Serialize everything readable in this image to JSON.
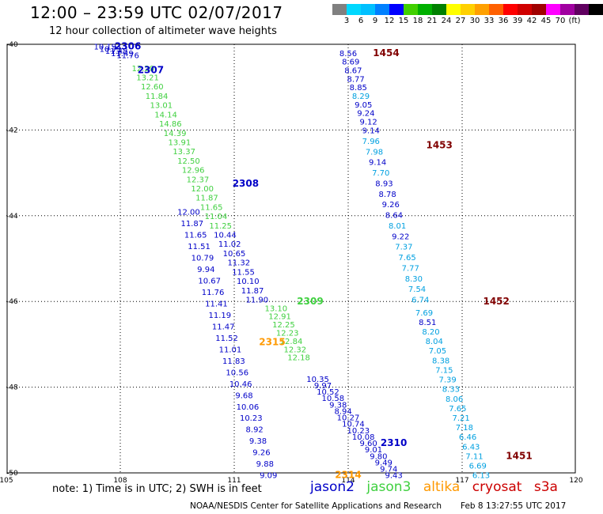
{
  "header": {
    "title": "12:00 – 23:59 UTC 02/07/2017",
    "subtitle": "12 hour collection of altimeter wave heights"
  },
  "scale": {
    "colors": [
      "#808080",
      "#00d8ff",
      "#00c0ff",
      "#0080ff",
      "#0000ff",
      "#40d000",
      "#00b000",
      "#008000",
      "#ffff00",
      "#ffd000",
      "#ffa000",
      "#ff6000",
      "#ff0000",
      "#d00000",
      "#a00000",
      "#ff00ff",
      "#a000a0",
      "#600060",
      "#000000"
    ],
    "labels": [
      "3",
      "6",
      "9",
      "12",
      "15",
      "18",
      "21",
      "24",
      "27",
      "30",
      "33",
      "36",
      "39",
      "42",
      "45",
      "70",
      "(ft)"
    ]
  },
  "axes": {
    "lat_labels": [
      "-40",
      "-42",
      "-44",
      "-46",
      "-48",
      "-50"
    ],
    "lon_labels": [
      "105",
      "108",
      "111",
      "114",
      "117",
      "120"
    ]
  },
  "colors": {
    "jason2": "#0000c8",
    "jason3": "#40d040",
    "altika": "#ff9900",
    "cryosat": "#800000",
    "s3a": "#800000",
    "obs_light": "#00a0e0"
  },
  "tracks": [
    {
      "label": "2306",
      "color": "#0000c8",
      "values": [
        "10.19",
        "10.71",
        "11.48",
        "11.49",
        "11.76"
      ]
    },
    {
      "label": "2307",
      "color": "#0000c8",
      "values": [
        "12.20",
        "13.21",
        "12.60",
        "11.84",
        "13.01",
        "14.14",
        "14.86",
        "14.39",
        "13.91",
        "13.37",
        "12.50",
        "12.96",
        "12.37",
        "12.00",
        "11.87",
        "11.65",
        "11.04",
        "11.25",
        "10.44",
        "11.02",
        "10.65",
        "11.32",
        "11.55",
        "10.10",
        "11.87",
        "11.90"
      ]
    },
    {
      "label": "2308",
      "color": "#0000c8",
      "values": [
        "12.00",
        "11.87",
        "11.65",
        "11.51",
        "10.79",
        "9.94",
        "10.67",
        "11.76",
        "11.41",
        "11.19",
        "11.47",
        "11.52",
        "11.01",
        "11.83",
        "10.56",
        "10.46",
        "9.68",
        "10.06",
        "10.23",
        "8.92",
        "9.38",
        "9.26",
        "9.88",
        "9.09"
      ]
    },
    {
      "label": "2309",
      "color": "#40d040",
      "values": [
        "13.10",
        "12.91",
        "12.25",
        "12.23",
        "12.84",
        "12.32",
        "12.18"
      ]
    },
    {
      "label": "2310",
      "color": "#0000c8",
      "values": [
        "10.35",
        "9.97",
        "10.52",
        "10.58",
        "9.38",
        "8.94",
        "10.27",
        "10.74",
        "10.23",
        "10.08",
        "9.60",
        "9.01",
        "9.80",
        "9.49",
        "9.74",
        "9.43"
      ]
    },
    {
      "label": "1454",
      "color": "#800000",
      "values": [
        "8.56",
        "8.69",
        "8.67",
        "8.77",
        "8.85",
        "8.29",
        "9.05",
        "9.24",
        "9.12",
        "9.14"
      ]
    },
    {
      "label": "1453",
      "color": "#800000",
      "values": [
        "7.96",
        "7.98",
        "9.14",
        "7.70",
        "8.93",
        "8.78",
        "9.26",
        "8.64",
        "8.01",
        "9.22",
        "7.37",
        "7.65",
        "7.77",
        "8.30",
        "7.54",
        "6.74"
      ]
    },
    {
      "label": "1452",
      "color": "#800000",
      "values": [
        "7.69",
        "8.51",
        "8.20",
        "8.04",
        "7.05",
        "8.38",
        "7.15",
        "7.39",
        "8.33",
        "8.06",
        "7.65",
        "7.21",
        "7.18",
        "6.46",
        "6.43",
        "7.11",
        "6.69",
        "6.13"
      ]
    },
    {
      "label": "1451",
      "color": "#800000",
      "values": []
    },
    {
      "label": "2315",
      "color": "#ff9900",
      "values": []
    },
    {
      "label": "2314",
      "color": "#ff9900",
      "values": []
    }
  ],
  "footer": {
    "note": "note:  1) Time is in UTC;  2) SWH is in feet",
    "legend": [
      "jason2",
      "jason3",
      "altika",
      "cryosat",
      "s3a"
    ],
    "credit": "NOAA/NESDIS Center for Satellite Applications and Research",
    "timestamp": "Feb  8 13:27:55 UTC 2017"
  }
}
